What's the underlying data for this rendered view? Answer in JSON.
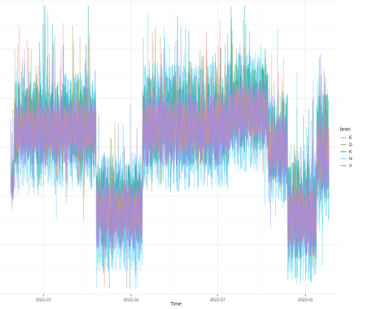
{
  "chart_data": {
    "type": "line",
    "xlabel": "Time",
    "ylabel": "",
    "x_ticks": [
      "2021-07",
      "2022-01",
      "2022-07",
      "2023-01"
    ],
    "x_tick_dates": [
      "2021-07-01",
      "2022-01-01",
      "2022-07-01",
      "2023-01-01"
    ],
    "x_range": [
      "2021-04-01",
      "2023-03-10"
    ],
    "y_ticks_shown": false,
    "grid": true,
    "legend_title": "bron",
    "legend_position": "right",
    "legend_entries_visible": [
      "E",
      "D",
      "K",
      "N",
      "V"
    ],
    "series": [
      {
        "name": "N",
        "color": "#61D0F5"
      },
      {
        "name": "K",
        "color": "#2BB3A0"
      },
      {
        "name": "D",
        "color": "#9BA24B"
      },
      {
        "name": "E",
        "color": "#F5907D"
      },
      {
        "name": "V",
        "color": "#9C8CE6"
      }
    ],
    "regimes": [
      {
        "from": "2021-04-24",
        "to": "2021-05-01",
        "center": 0.38,
        "spread": 0.05
      },
      {
        "from": "2021-05-01",
        "to": "2021-10-20",
        "center": 0.56,
        "spread": 0.12
      },
      {
        "from": "2021-10-20",
        "to": "2022-01-25",
        "center": 0.28,
        "spread": 0.12
      },
      {
        "from": "2022-01-25",
        "to": "2022-07-25",
        "center": 0.57,
        "spread": 0.13
      },
      {
        "from": "2022-07-25",
        "to": "2022-10-15",
        "center": 0.62,
        "spread": 0.12
      },
      {
        "from": "2022-10-15",
        "to": "2022-11-25",
        "center": 0.5,
        "spread": 0.12
      },
      {
        "from": "2022-11-25",
        "to": "2023-01-25",
        "center": 0.27,
        "spread": 0.14
      },
      {
        "from": "2023-01-25",
        "to": "2023-02-20",
        "center": 0.48,
        "spread": 0.16
      }
    ]
  }
}
